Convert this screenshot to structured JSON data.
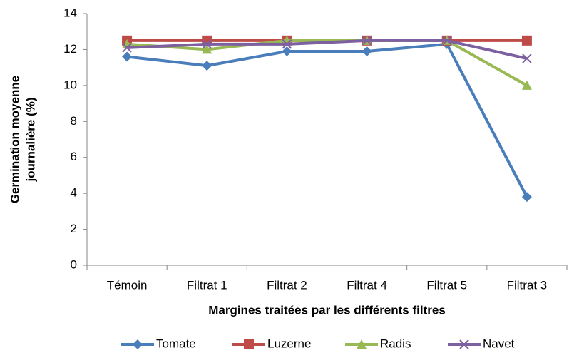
{
  "chart_data": {
    "type": "line",
    "y_label": [
      "Germination moyenne",
      "journalière (%)"
    ],
    "x_label": "Margines traitées par les différents filtres",
    "categories": [
      "Témoin",
      "Filtrat 1",
      "Filtrat 2",
      "Filtrat 4",
      "Filtrat 5",
      "Filtrat 3"
    ],
    "series": [
      {
        "name": "Tomate",
        "color": "#4a7ebb",
        "marker": "diamond",
        "values": [
          11.6,
          11.1,
          11.9,
          11.9,
          12.3,
          3.8
        ]
      },
      {
        "name": "Luzerne",
        "color": "#be4b48",
        "marker": "square",
        "values": [
          12.5,
          12.5,
          12.5,
          12.5,
          12.5,
          12.5
        ]
      },
      {
        "name": "Radis",
        "color": "#98b954",
        "marker": "triangle",
        "values": [
          12.3,
          12.0,
          12.5,
          12.5,
          12.5,
          10.0
        ]
      },
      {
        "name": "Navet",
        "color": "#7d60a0",
        "marker": "x",
        "values": [
          12.1,
          12.3,
          12.3,
          12.5,
          12.5,
          11.5
        ]
      }
    ],
    "ylim": [
      0,
      14
    ],
    "yticks": [
      0,
      2,
      4,
      6,
      8,
      10,
      12,
      14
    ],
    "grid": false,
    "legend": "bottom"
  }
}
